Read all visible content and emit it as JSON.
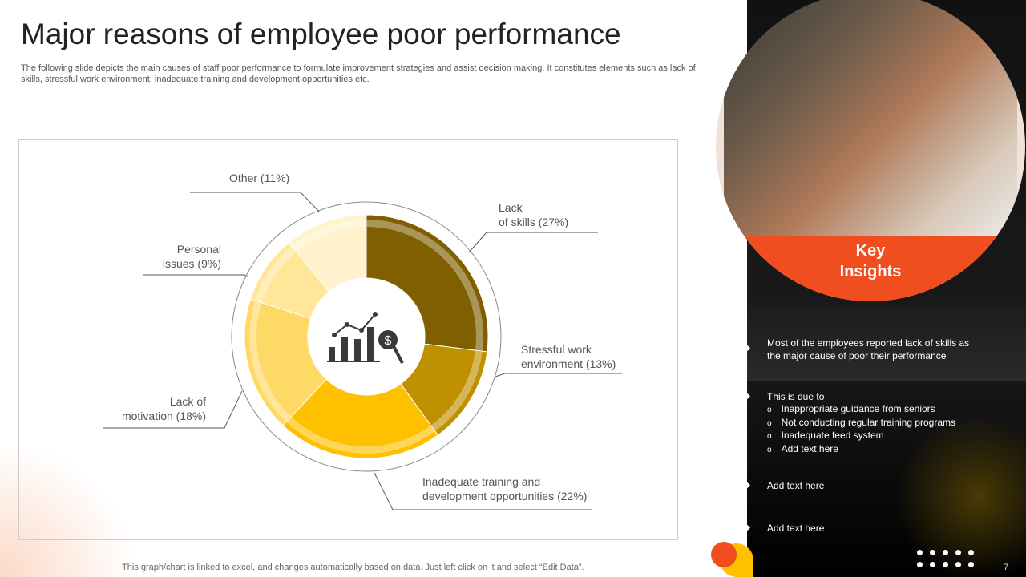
{
  "title": "Major reasons of employee poor performance",
  "subtitle": "The following slide depicts the main causes of staff poor performance to formulate improvement strategies and assist decision making. It constitutes elements such as lack of skills, stressful work environment, inadequate training and development opportunities etc.",
  "footer": "This graph/chart is linked to excel, and changes automatically based on data. Just left click on it and select “Edit Data”.",
  "page_number": "7",
  "chart_data": {
    "type": "pie",
    "variant": "donut",
    "center_icon": "chart-dollar-magnifier-icon",
    "categories": [
      "Lack of skills",
      "Stressful work environment",
      "Inadequate training and development opportunities",
      "Lack of motivation",
      "Personal issues",
      "Other"
    ],
    "values": [
      27,
      13,
      22,
      18,
      9,
      11
    ],
    "unit": "%",
    "colors": [
      "#7f5f00",
      "#bf9000",
      "#ffc000",
      "#ffd966",
      "#ffe699",
      "#fff2cc"
    ],
    "labels": [
      {
        "line1": "Lack",
        "line2": "of skills (27%)"
      },
      {
        "line1": "Stressful work",
        "line2": "environment (13%)"
      },
      {
        "line1": "Inadequate training and",
        "line2": "development opportunities (22%)"
      },
      {
        "line1": "Lack of",
        "line2": "motivation (18%)"
      },
      {
        "line1": "Personal",
        "line2": "issues (9%)"
      },
      {
        "line1": "Other (11%)",
        "line2": ""
      }
    ]
  },
  "panel": {
    "heading_line1": "Key",
    "heading_line2": "Insights",
    "accent": "#f04e1f",
    "insight": "Most of the employees reported lack of skills as the major cause of poor their performance",
    "due_title": "This is due to",
    "due_items": [
      "Inappropriate guidance from seniors",
      "Not conducting regular training programs",
      "Inadequate feed system",
      "Add text here"
    ],
    "extra1": "Add text here",
    "extra2": "Add text here"
  }
}
